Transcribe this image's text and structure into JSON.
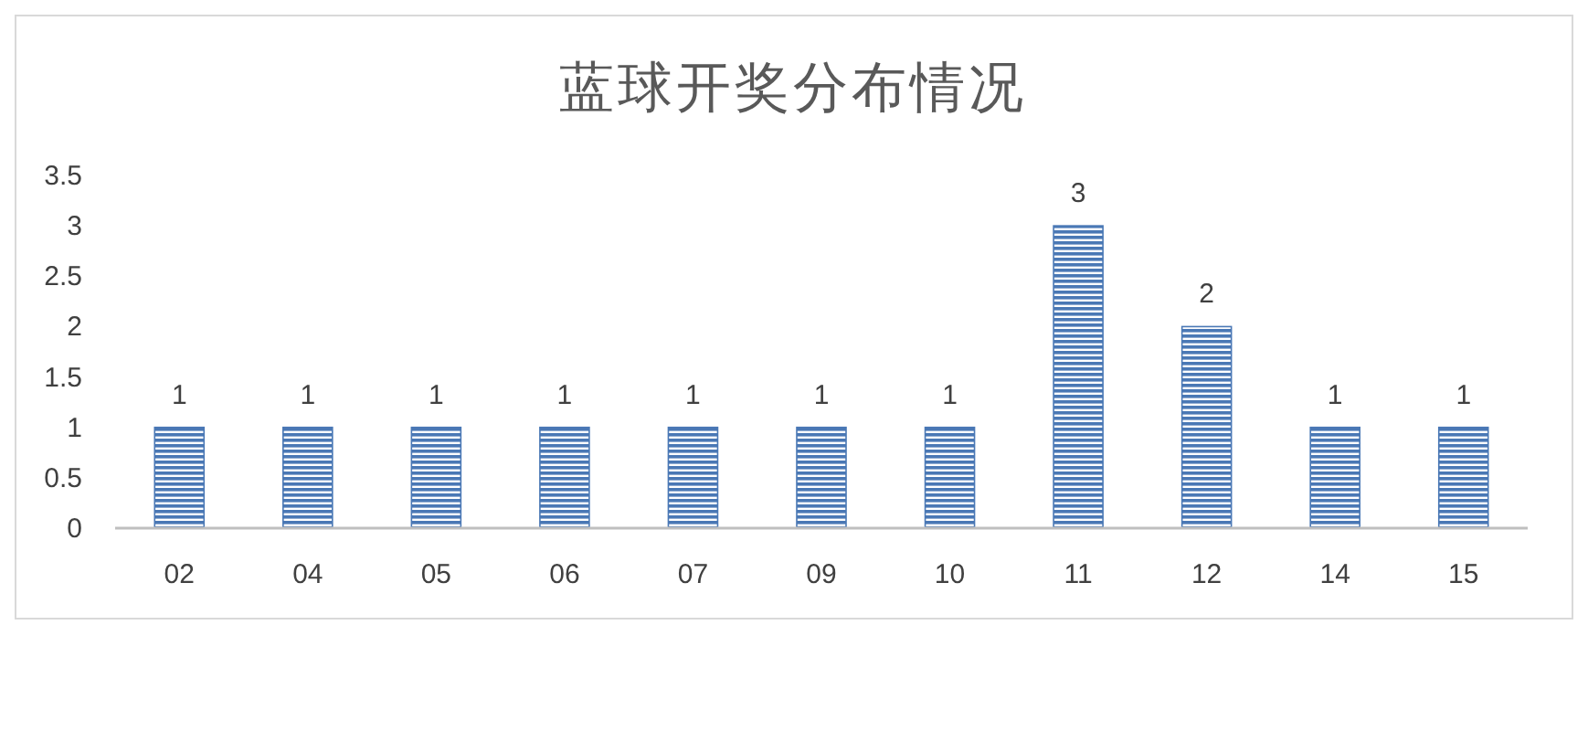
{
  "chart_data": {
    "type": "bar",
    "title": "蓝球开奖分布情况",
    "categories": [
      "02",
      "04",
      "05",
      "06",
      "07",
      "09",
      "10",
      "11",
      "12",
      "14",
      "15"
    ],
    "values": [
      1,
      1,
      1,
      1,
      1,
      1,
      1,
      3,
      2,
      1,
      1
    ],
    "color": "#4a78b5",
    "ylim": [
      0,
      3.5
    ],
    "yticks": [
      0,
      0.5,
      1,
      1.5,
      2,
      2.5,
      3,
      3.5
    ],
    "data_labels": true,
    "grid": false
  }
}
